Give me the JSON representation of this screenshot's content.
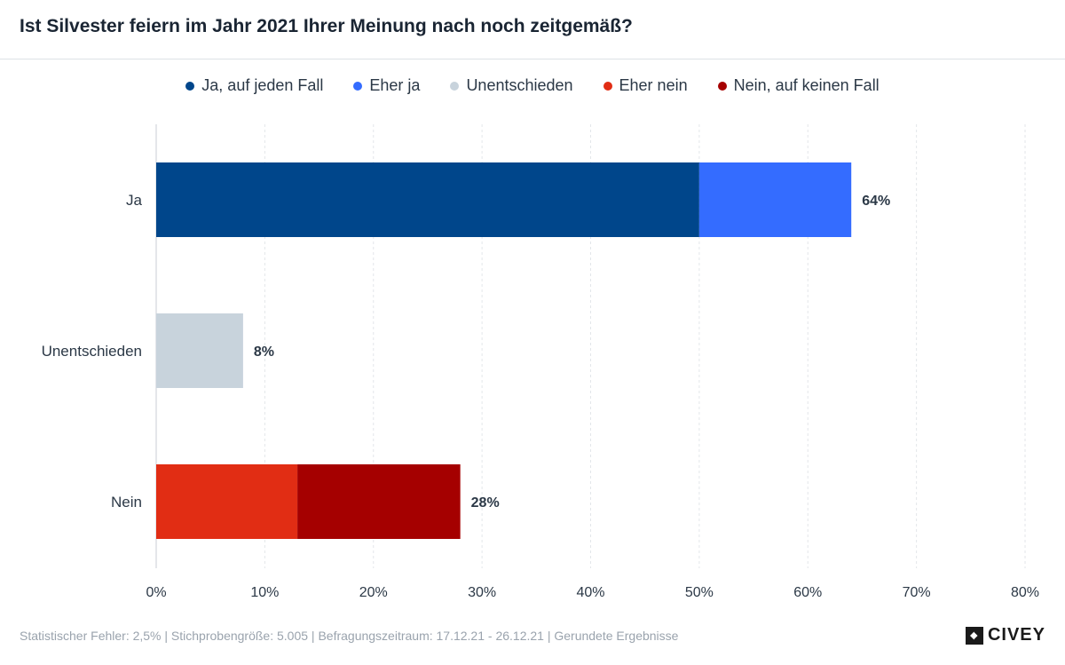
{
  "chart_data": {
    "type": "bar",
    "orientation": "horizontal",
    "stacked": true,
    "title": "Ist Silvester feiern im Jahr 2021 Ihrer Meinung nach noch zeitgemäß?",
    "categories": [
      "Ja",
      "Unentschieden",
      "Nein"
    ],
    "series": [
      {
        "name": "Ja, auf jeden Fall",
        "color": "#00468b",
        "values": [
          50,
          0,
          0
        ]
      },
      {
        "name": "Eher ja",
        "color": "#346cff",
        "values": [
          14,
          0,
          0
        ]
      },
      {
        "name": "Unentschieden",
        "color": "#c8d3dc",
        "values": [
          0,
          8,
          0
        ]
      },
      {
        "name": "Eher nein",
        "color": "#e12d14",
        "values": [
          0,
          0,
          13
        ]
      },
      {
        "name": "Nein, auf keinen Fall",
        "color": "#a50000",
        "values": [
          0,
          0,
          15
        ]
      }
    ],
    "totals": [
      64,
      8,
      28
    ],
    "total_labels": [
      "64%",
      "8%",
      "28%"
    ],
    "xlim": [
      0,
      80
    ],
    "xticks": [
      0,
      10,
      20,
      30,
      40,
      50,
      60,
      70,
      80
    ],
    "xtick_labels": [
      "0%",
      "10%",
      "20%",
      "30%",
      "40%",
      "50%",
      "60%",
      "70%",
      "80%"
    ],
    "grid": true,
    "legend_position": "top-center"
  },
  "footer": {
    "text": "Statistischer Fehler: 2,5% | Stichprobengröße: 5.005 | Befragungszeitraum: 17.12.21 - 26.12.21 | Gerundete Ergebnisse"
  },
  "brand": {
    "name": "CIVEY",
    "icon": "civey-logo-icon"
  },
  "colors": {
    "grid": "#e3e6ea",
    "axis": "#c9ced4",
    "text": "#2b3846"
  }
}
